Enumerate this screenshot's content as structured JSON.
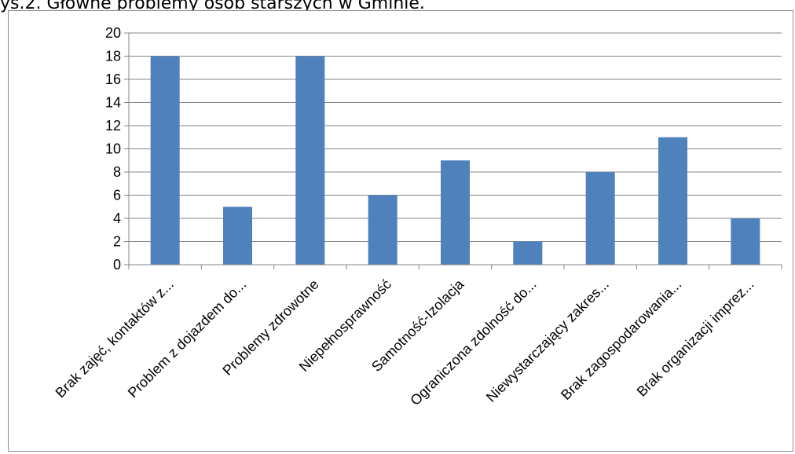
{
  "caption": "ys.2. Główne problemy osób starszych w Gminie.",
  "chart_data": {
    "type": "bar",
    "title": "",
    "xlabel": "",
    "ylabel": "",
    "ylim": [
      0,
      20
    ],
    "yticks": [
      0,
      2,
      4,
      6,
      8,
      10,
      12,
      14,
      16,
      18,
      20
    ],
    "grid": true,
    "legend": "none",
    "bar_color": "#4f81bd",
    "grid_color": "#868686",
    "categories": [
      "Brak zajęć, kontaktów z...",
      "Problem z dojazdem do...",
      "Problemy zdrowotne",
      "Niepełnosprawność",
      "Samotność-Izolacja",
      "Ograniczona zdolność do...",
      "Niewystarczający zakres...",
      "Brak zagospodarowania...",
      "Brak organizacji imprez..."
    ],
    "values": [
      18,
      5,
      18,
      6,
      9,
      2,
      8,
      11,
      4
    ]
  }
}
